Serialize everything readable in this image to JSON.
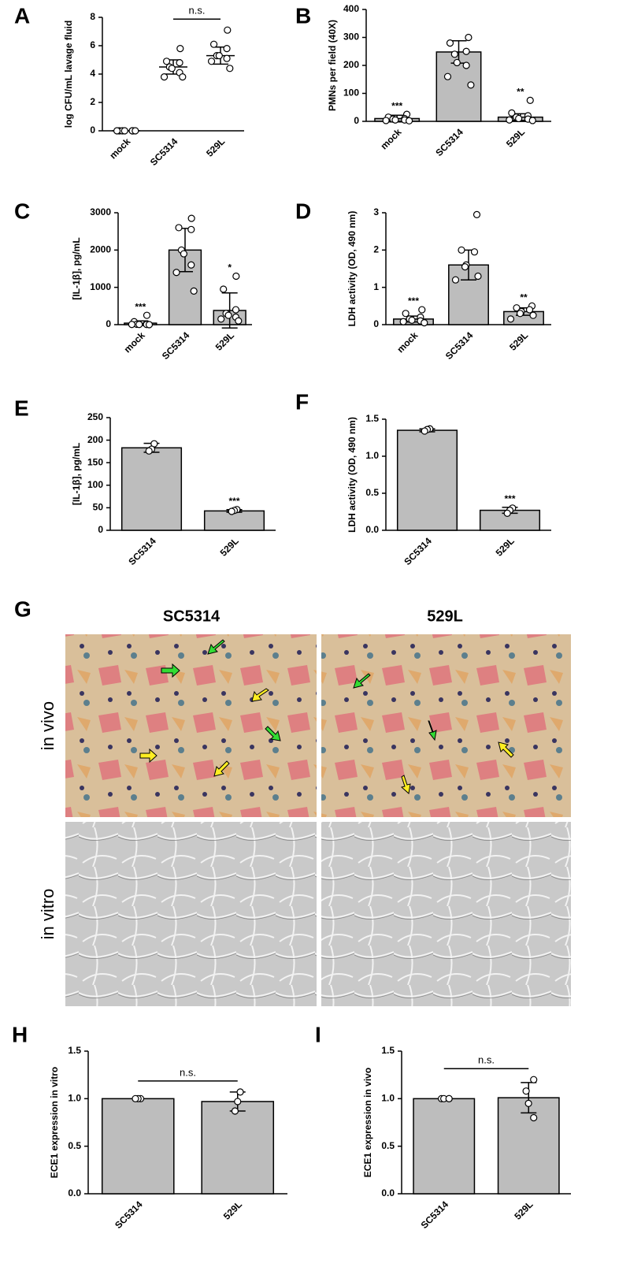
{
  "chart_data": [
    {
      "type": "dot",
      "panel": "A",
      "ylabel": "log CFU/mL lavage fluid",
      "categories": [
        "mock",
        "SC5314",
        "529L"
      ],
      "values": [
        0,
        4.5,
        5.3
      ],
      "errors": [
        0,
        0.5,
        0.6
      ],
      "points": [
        [
          0,
          0,
          0,
          0,
          0,
          0,
          0,
          0
        ],
        [
          5.8,
          4.9,
          4.8,
          4.5,
          4.4,
          4.1,
          3.8,
          3.8
        ],
        [
          7.1,
          6.1,
          5.8,
          5.3,
          5.3,
          5.1,
          4.9,
          4.4
        ]
      ],
      "ylim": [
        0,
        8
      ],
      "yticks": [
        0,
        2,
        4,
        6,
        8
      ],
      "comparison": "n.s."
    },
    {
      "type": "bar",
      "panel": "B",
      "ylabel": "PMNs per field (40X)",
      "categories": [
        "mock",
        "SC5314",
        "529L"
      ],
      "values": [
        10,
        248,
        15
      ],
      "errors": [
        12,
        40,
        12
      ],
      "points": [
        [
          25,
          15,
          10,
          8,
          5,
          5,
          3,
          2
        ],
        [
          300,
          280,
          250,
          240,
          210,
          200,
          160,
          130
        ],
        [
          75,
          30,
          20,
          15,
          10,
          8,
          5,
          3
        ]
      ],
      "significance": [
        "***",
        null,
        "**"
      ],
      "ylim": [
        0,
        400
      ],
      "yticks": [
        0,
        100,
        200,
        300,
        400
      ]
    },
    {
      "type": "bar",
      "panel": "C",
      "ylabel": "[IL-1β], pg/mL",
      "categories": [
        "mock",
        "SC5314",
        "529L"
      ],
      "values": [
        40,
        2000,
        380
      ],
      "errors": [
        60,
        580,
        470
      ],
      "points": [
        [
          250,
          80,
          20,
          10,
          5,
          5,
          5,
          0
        ],
        [
          2850,
          2600,
          2550,
          2000,
          1900,
          1600,
          1400,
          900
        ],
        [
          1300,
          950,
          400,
          300,
          250,
          200,
          150,
          100
        ]
      ],
      "significance": [
        "***",
        null,
        "*"
      ],
      "ylim": [
        0,
        3000
      ],
      "yticks": [
        0,
        1000,
        2000,
        3000
      ]
    },
    {
      "type": "bar",
      "panel": "D",
      "ylabel": "LDH activity (OD, 490 nm)",
      "categories": [
        "mock",
        "SC5314",
        "529L"
      ],
      "values": [
        0.15,
        1.6,
        0.35
      ],
      "errors": [
        0.08,
        0.4,
        0.1
      ],
      "points": [
        [
          0.4,
          0.3,
          0.2,
          0.15,
          0.12,
          0.1,
          0.08,
          0.05
        ],
        [
          2.95,
          2.0,
          1.95,
          1.6,
          1.55,
          1.3,
          1.2
        ],
        [
          0.5,
          0.45,
          0.4,
          0.35,
          0.3,
          0.25,
          0.15
        ]
      ],
      "significance": [
        "***",
        null,
        "**"
      ],
      "ylim": [
        0,
        3
      ],
      "yticks": [
        0,
        1,
        2,
        3
      ]
    },
    {
      "type": "bar",
      "panel": "E",
      "ylabel": "[IL-1β], pg/mL",
      "categories": [
        "SC5314",
        "529L"
      ],
      "values": [
        183,
        43
      ],
      "errors": [
        10,
        3
      ],
      "points": [
        [
          192,
          180,
          176
        ],
        [
          46,
          44,
          42
        ]
      ],
      "significance": [
        null,
        "***"
      ],
      "ylim": [
        0,
        250
      ],
      "yticks": [
        0,
        50,
        100,
        150,
        200,
        250
      ]
    },
    {
      "type": "bar",
      "panel": "F",
      "ylabel": "LDH activity (OD, 490 nm)",
      "categories": [
        "SC5314",
        "529L"
      ],
      "values": [
        1.35,
        0.27
      ],
      "errors": [
        0.02,
        0.04
      ],
      "points": [
        [
          1.37,
          1.36,
          1.34
        ],
        [
          0.3,
          0.27,
          0.23
        ]
      ],
      "significance": [
        null,
        "***"
      ],
      "ylim": [
        0,
        1.5
      ],
      "yticks": [
        {
          "value": 0,
          "label": "0.0"
        },
        0.5,
        {
          "value": 1,
          "label": "1.0"
        },
        1.5
      ]
    },
    {
      "type": "bar",
      "panel": "H",
      "ylabel": "ECE1 expression in vitro",
      "categories": [
        "SC5314",
        "529L"
      ],
      "values": [
        1.0,
        0.97
      ],
      "errors": [
        0,
        0.1
      ],
      "points": [
        [
          1,
          1,
          1
        ],
        [
          1.07,
          0.97,
          0.87
        ]
      ],
      "ylim": [
        0,
        1.5
      ],
      "yticks": [
        {
          "value": 0,
          "label": "0.0"
        },
        0.5,
        {
          "value": 1,
          "label": "1.0"
        },
        1.5
      ],
      "comparison": "n.s."
    },
    {
      "type": "bar",
      "panel": "I",
      "ylabel": "ECE1 expression in vivo",
      "categories": [
        "SC5314",
        "529L"
      ],
      "values": [
        1.0,
        1.01
      ],
      "errors": [
        0,
        0.16
      ],
      "points": [
        [
          1,
          1,
          1,
          1
        ],
        [
          1.2,
          1.08,
          0.95,
          0.8
        ]
      ],
      "ylim": [
        0,
        1.5
      ],
      "yticks": [
        {
          "value": 0,
          "label": "0.0"
        },
        0.5,
        {
          "value": 1,
          "label": "1.0"
        },
        1.5
      ],
      "comparison": "n.s."
    }
  ],
  "image_panel": {
    "panel": "G",
    "columns": [
      "SC5314",
      "529L"
    ],
    "rows": [
      "in vivo",
      "in vitro"
    ]
  }
}
